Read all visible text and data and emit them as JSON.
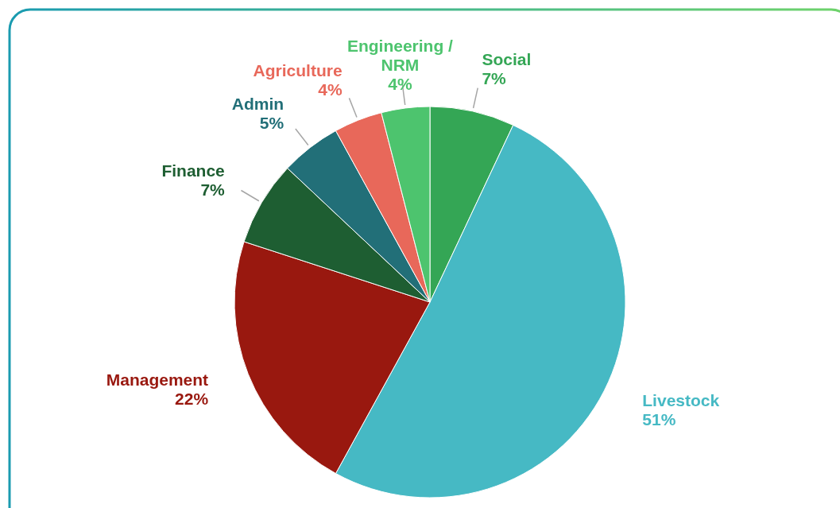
{
  "chart_data": {
    "type": "pie",
    "categories": [
      "Social",
      "Livestock",
      "Management",
      "Finance",
      "Admin",
      "Agriculture",
      "Engineering / NRM"
    ],
    "values": [
      7,
      51,
      22,
      7,
      5,
      4,
      4
    ],
    "value_labels": [
      "7%",
      "51%",
      "22%",
      "7%",
      "5%",
      "4%",
      "4%"
    ],
    "colors": [
      "#34a655",
      "#46b9c4",
      "#99180f",
      "#1e5e32",
      "#226f78",
      "#e8685a",
      "#4dc46e"
    ]
  }
}
